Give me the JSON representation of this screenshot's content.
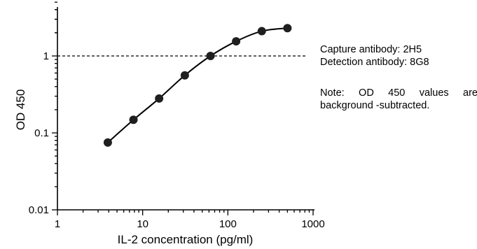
{
  "chart_data": {
    "type": "line",
    "title": "",
    "xlabel": "IL-2 concentration (pg/ml)",
    "ylabel": "OD 450",
    "x_scale": "log",
    "y_scale": "log",
    "xlim": [
      1,
      1000
    ],
    "ylim": [
      0.01,
      5
    ],
    "x_ticks": [
      {
        "value": 1,
        "label": "1"
      },
      {
        "value": 10,
        "label": "10"
      },
      {
        "value": 100,
        "label": "100"
      },
      {
        "value": 1000,
        "label": "1000"
      }
    ],
    "y_ticks": [
      {
        "value": 0.01,
        "label": "0.01"
      },
      {
        "value": 0.1,
        "label": "0.1"
      },
      {
        "value": 1,
        "label": "1"
      }
    ],
    "grid": false,
    "reference_line": {
      "y": 1,
      "style": "dashed"
    },
    "series": [
      {
        "x": [
          3.9,
          7.8,
          15.6,
          31.25,
          62.5,
          125,
          250,
          500
        ],
        "y": [
          0.075,
          0.148,
          0.28,
          0.56,
          1.0,
          1.55,
          2.1,
          2.3
        ]
      }
    ],
    "colors": {
      "marker": "#1f1f1f",
      "line": "#000000"
    }
  },
  "notes": {
    "capture": "Capture antibody: 2H5",
    "detection": "Detection antibody: 8G8",
    "background": "Note: OD 450 values are background -subtracted."
  }
}
